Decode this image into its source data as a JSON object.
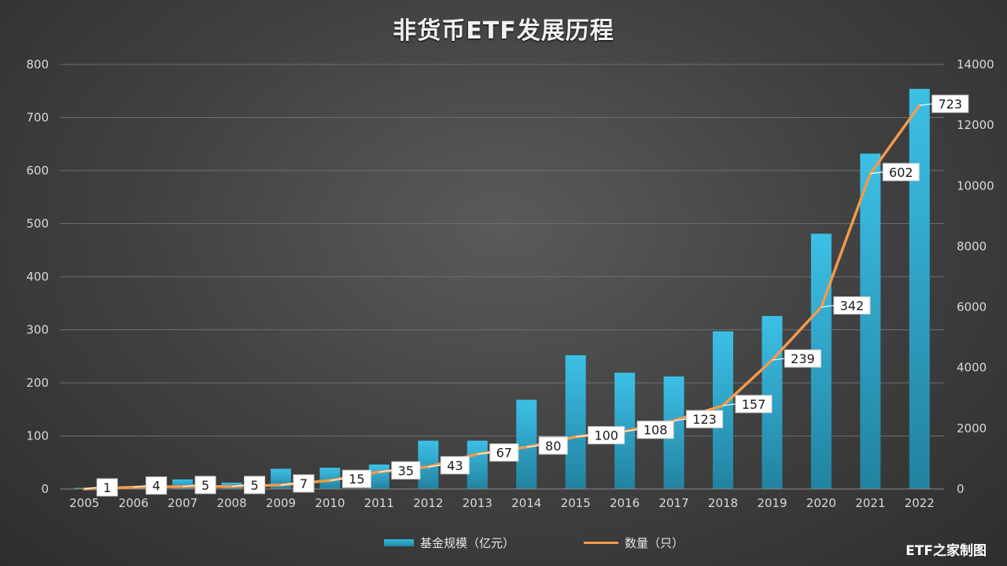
{
  "chart_data": {
    "type": "bar",
    "title": "非货币ETF发展历程",
    "categories": [
      "2005",
      "2006",
      "2007",
      "2008",
      "2009",
      "2010",
      "2011",
      "2012",
      "2013",
      "2014",
      "2015",
      "2016",
      "2017",
      "2018",
      "2019",
      "2020",
      "2021",
      "2022"
    ],
    "series": [
      {
        "name": "基金规模（亿元）",
        "type": "bar",
        "axis": "left",
        "color": "#33b2d8",
        "values": [
          2,
          5,
          18,
          12,
          38,
          40,
          46,
          91,
          91,
          168,
          252,
          219,
          212,
          297,
          326,
          481,
          632,
          754
        ]
      },
      {
        "name": "数量（只）",
        "type": "line",
        "axis": "right",
        "color": "#f39a4b",
        "values": [
          1,
          4,
          5,
          5,
          7,
          15,
          35,
          43,
          67,
          80,
          100,
          108,
          123,
          157,
          239,
          342,
          602,
          723
        ],
        "line_y": [
          0,
          60,
          80,
          80,
          130,
          280,
          560,
          730,
          1150,
          1380,
          1720,
          1900,
          2250,
          2750,
          4250,
          6000,
          10400,
          12650
        ],
        "data_labels": [
          "1",
          "4",
          "5",
          "5",
          "7",
          "15",
          "35",
          "43",
          "67",
          "80",
          "100",
          "108",
          "123",
          "157",
          "239",
          "342",
          "602",
          "723"
        ]
      }
    ],
    "y_left": {
      "min": 0,
      "max": 800,
      "ticks": [
        0,
        100,
        200,
        300,
        400,
        500,
        600,
        700,
        800
      ]
    },
    "y_right": {
      "min": 0,
      "max": 14000,
      "ticks": [
        0,
        2000,
        4000,
        6000,
        8000,
        10000,
        12000,
        14000
      ]
    },
    "grid": true,
    "legend_position": "bottom"
  },
  "watermark": "ETF之家制图"
}
